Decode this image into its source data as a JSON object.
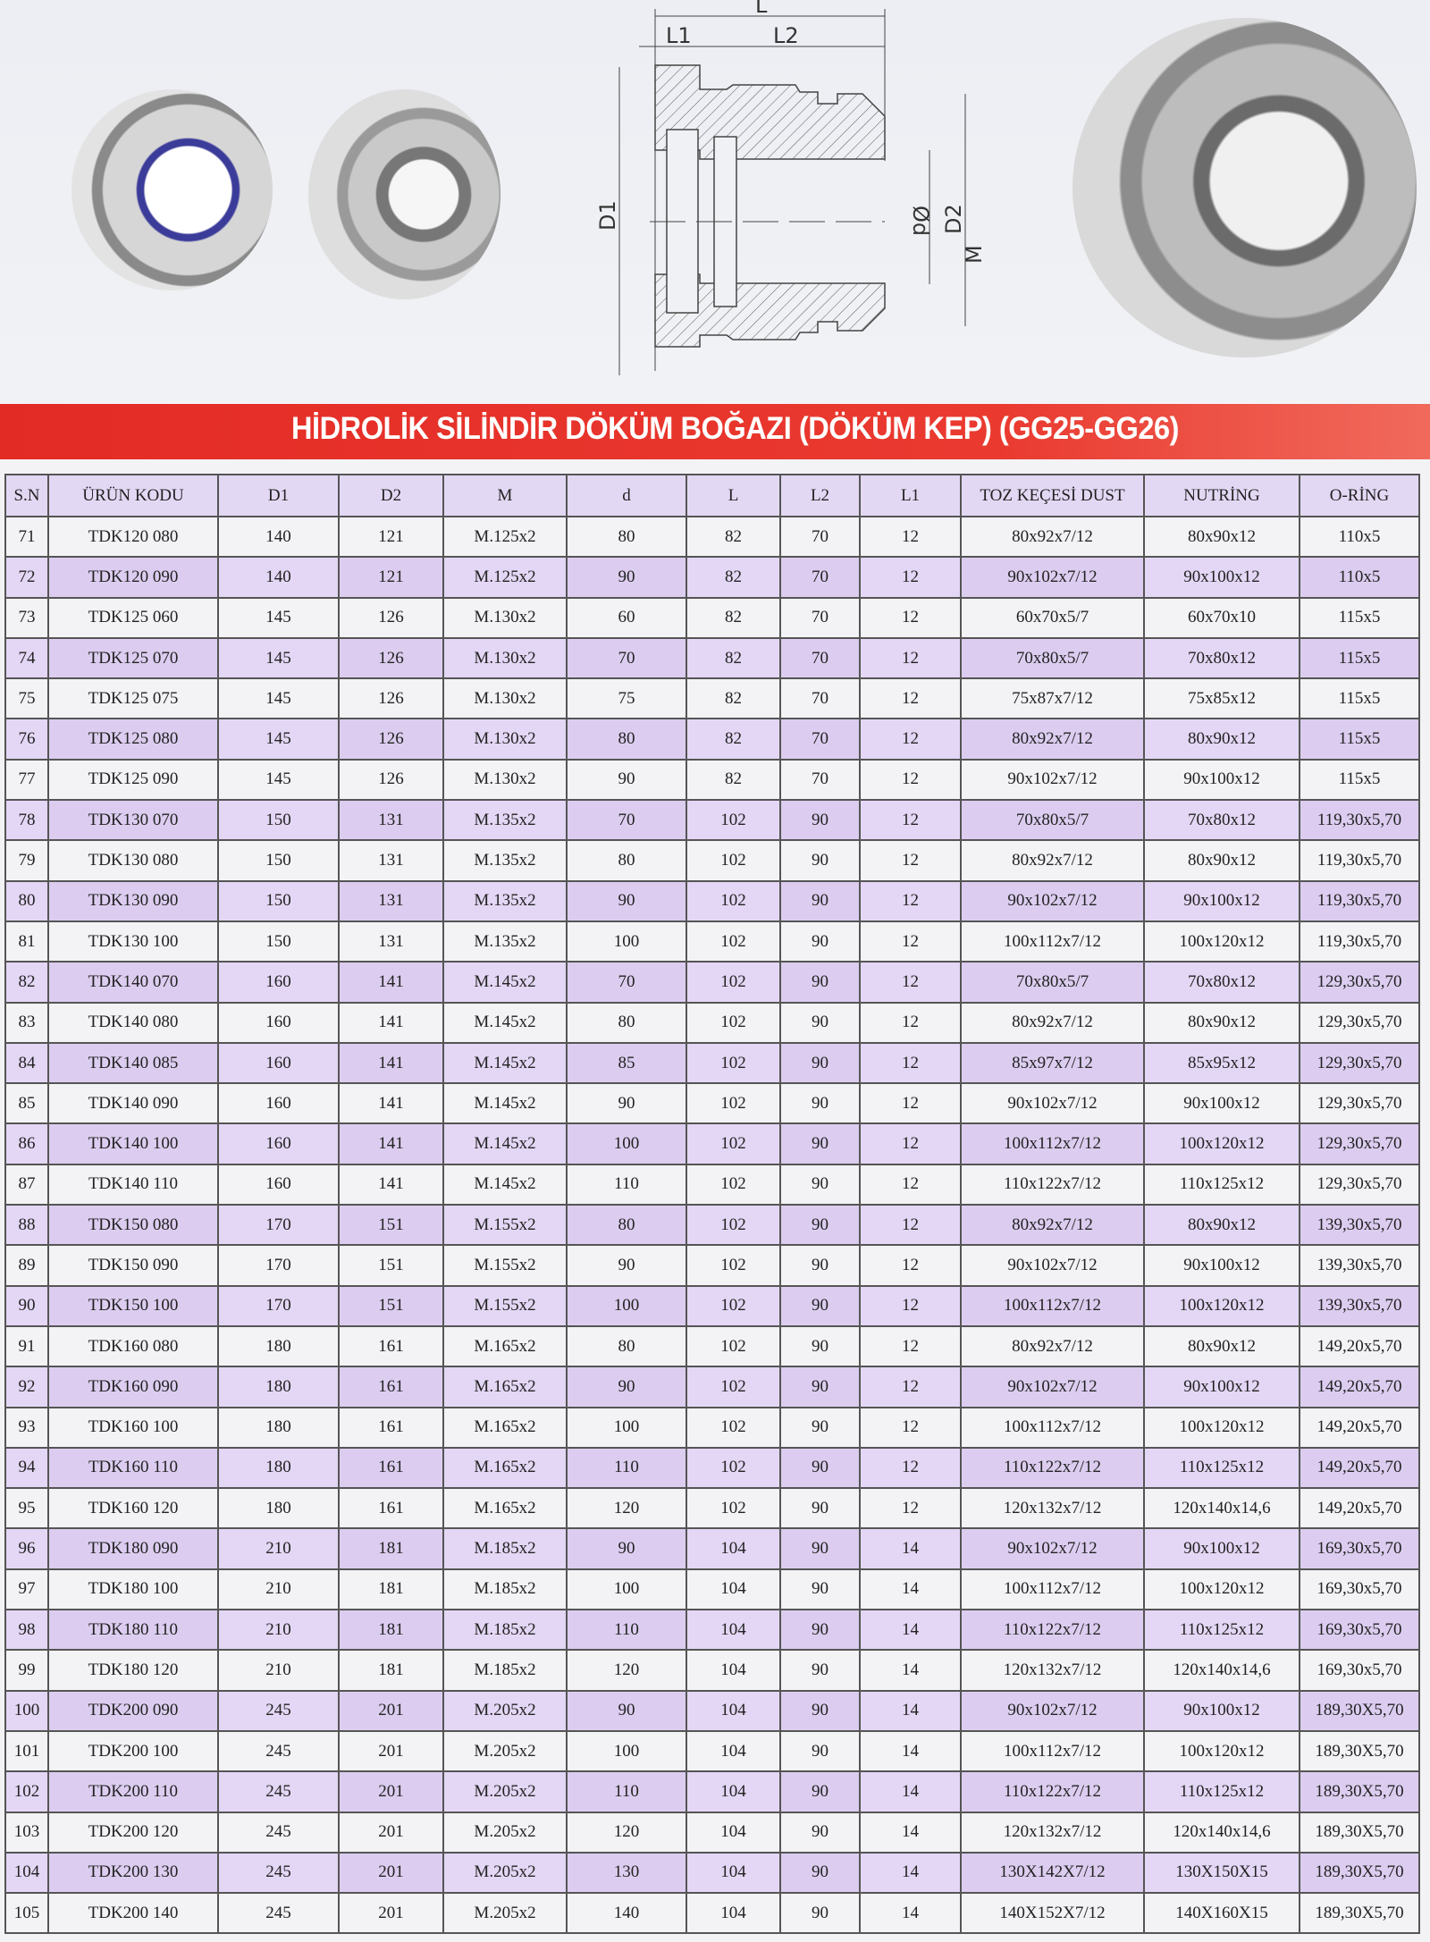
{
  "title": "HİDROLİK SİLİNDİR DÖKÜM BOĞAZI (DÖKÜM KEP) (GG25-GG26)",
  "drawing_labels": {
    "L": "L",
    "L1": "L1",
    "L2": "L2",
    "D1": "D1",
    "Od": "Ød",
    "D2": "D2",
    "M": "M"
  },
  "colors": {
    "banner": "#e32b25",
    "row_alt": "#e4d7f5"
  },
  "table": {
    "headers": [
      "S.N",
      "ÜRÜN KODU",
      "D1",
      "D2",
      "M",
      "d",
      "L",
      "L2",
      "L1",
      "TOZ KEÇESİ DUST",
      "NUTRİNG",
      "O-RİNG"
    ],
    "rows": [
      [
        "71",
        "TDK120 080",
        "140",
        "121",
        "M.125x2",
        "80",
        "82",
        "70",
        "12",
        "80x92x7/12",
        "80x90x12",
        "110x5"
      ],
      [
        "72",
        "TDK120 090",
        "140",
        "121",
        "M.125x2",
        "90",
        "82",
        "70",
        "12",
        "90x102x7/12",
        "90x100x12",
        "110x5"
      ],
      [
        "73",
        "TDK125 060",
        "145",
        "126",
        "M.130x2",
        "60",
        "82",
        "70",
        "12",
        "60x70x5/7",
        "60x70x10",
        "115x5"
      ],
      [
        "74",
        "TDK125 070",
        "145",
        "126",
        "M.130x2",
        "70",
        "82",
        "70",
        "12",
        "70x80x5/7",
        "70x80x12",
        "115x5"
      ],
      [
        "75",
        "TDK125 075",
        "145",
        "126",
        "M.130x2",
        "75",
        "82",
        "70",
        "12",
        "75x87x7/12",
        "75x85x12",
        "115x5"
      ],
      [
        "76",
        "TDK125 080",
        "145",
        "126",
        "M.130x2",
        "80",
        "82",
        "70",
        "12",
        "80x92x7/12",
        "80x90x12",
        "115x5"
      ],
      [
        "77",
        "TDK125 090",
        "145",
        "126",
        "M.130x2",
        "90",
        "82",
        "70",
        "12",
        "90x102x7/12",
        "90x100x12",
        "115x5"
      ],
      [
        "78",
        "TDK130 070",
        "150",
        "131",
        "M.135x2",
        "70",
        "102",
        "90",
        "12",
        "70x80x5/7",
        "70x80x12",
        "119,30x5,70"
      ],
      [
        "79",
        "TDK130 080",
        "150",
        "131",
        "M.135x2",
        "80",
        "102",
        "90",
        "12",
        "80x92x7/12",
        "80x90x12",
        "119,30x5,70"
      ],
      [
        "80",
        "TDK130 090",
        "150",
        "131",
        "M.135x2",
        "90",
        "102",
        "90",
        "12",
        "90x102x7/12",
        "90x100x12",
        "119,30x5,70"
      ],
      [
        "81",
        "TDK130 100",
        "150",
        "131",
        "M.135x2",
        "100",
        "102",
        "90",
        "12",
        "100x112x7/12",
        "100x120x12",
        "119,30x5,70"
      ],
      [
        "82",
        "TDK140 070",
        "160",
        "141",
        "M.145x2",
        "70",
        "102",
        "90",
        "12",
        "70x80x5/7",
        "70x80x12",
        "129,30x5,70"
      ],
      [
        "83",
        "TDK140 080",
        "160",
        "141",
        "M.145x2",
        "80",
        "102",
        "90",
        "12",
        "80x92x7/12",
        "80x90x12",
        "129,30x5,70"
      ],
      [
        "84",
        "TDK140 085",
        "160",
        "141",
        "M.145x2",
        "85",
        "102",
        "90",
        "12",
        "85x97x7/12",
        "85x95x12",
        "129,30x5,70"
      ],
      [
        "85",
        "TDK140 090",
        "160",
        "141",
        "M.145x2",
        "90",
        "102",
        "90",
        "12",
        "90x102x7/12",
        "90x100x12",
        "129,30x5,70"
      ],
      [
        "86",
        "TDK140 100",
        "160",
        "141",
        "M.145x2",
        "100",
        "102",
        "90",
        "12",
        "100x112x7/12",
        "100x120x12",
        "129,30x5,70"
      ],
      [
        "87",
        "TDK140 110",
        "160",
        "141",
        "M.145x2",
        "110",
        "102",
        "90",
        "12",
        "110x122x7/12",
        "110x125x12",
        "129,30x5,70"
      ],
      [
        "88",
        "TDK150 080",
        "170",
        "151",
        "M.155x2",
        "80",
        "102",
        "90",
        "12",
        "80x92x7/12",
        "80x90x12",
        "139,30x5,70"
      ],
      [
        "89",
        "TDK150 090",
        "170",
        "151",
        "M.155x2",
        "90",
        "102",
        "90",
        "12",
        "90x102x7/12",
        "90x100x12",
        "139,30x5,70"
      ],
      [
        "90",
        "TDK150 100",
        "170",
        "151",
        "M.155x2",
        "100",
        "102",
        "90",
        "12",
        "100x112x7/12",
        "100x120x12",
        "139,30x5,70"
      ],
      [
        "91",
        "TDK160 080",
        "180",
        "161",
        "M.165x2",
        "80",
        "102",
        "90",
        "12",
        "80x92x7/12",
        "80x90x12",
        "149,20x5,70"
      ],
      [
        "92",
        "TDK160 090",
        "180",
        "161",
        "M.165x2",
        "90",
        "102",
        "90",
        "12",
        "90x102x7/12",
        "90x100x12",
        "149,20x5,70"
      ],
      [
        "93",
        "TDK160 100",
        "180",
        "161",
        "M.165x2",
        "100",
        "102",
        "90",
        "12",
        "100x112x7/12",
        "100x120x12",
        "149,20x5,70"
      ],
      [
        "94",
        "TDK160 110",
        "180",
        "161",
        "M.165x2",
        "110",
        "102",
        "90",
        "12",
        "110x122x7/12",
        "110x125x12",
        "149,20x5,70"
      ],
      [
        "95",
        "TDK160 120",
        "180",
        "161",
        "M.165x2",
        "120",
        "102",
        "90",
        "12",
        "120x132x7/12",
        "120x140x14,6",
        "149,20x5,70"
      ],
      [
        "96",
        "TDK180 090",
        "210",
        "181",
        "M.185x2",
        "90",
        "104",
        "90",
        "14",
        "90x102x7/12",
        "90x100x12",
        "169,30x5,70"
      ],
      [
        "97",
        "TDK180 100",
        "210",
        "181",
        "M.185x2",
        "100",
        "104",
        "90",
        "14",
        "100x112x7/12",
        "100x120x12",
        "169,30x5,70"
      ],
      [
        "98",
        "TDK180 110",
        "210",
        "181",
        "M.185x2",
        "110",
        "104",
        "90",
        "14",
        "110x122x7/12",
        "110x125x12",
        "169,30x5,70"
      ],
      [
        "99",
        "TDK180 120",
        "210",
        "181",
        "M.185x2",
        "120",
        "104",
        "90",
        "14",
        "120x132x7/12",
        "120x140x14,6",
        "169,30x5,70"
      ],
      [
        "100",
        "TDK200 090",
        "245",
        "201",
        "M.205x2",
        "90",
        "104",
        "90",
        "14",
        "90x102x7/12",
        "90x100x12",
        "189,30X5,70"
      ],
      [
        "101",
        "TDK200 100",
        "245",
        "201",
        "M.205x2",
        "100",
        "104",
        "90",
        "14",
        "100x112x7/12",
        "100x120x12",
        "189,30X5,70"
      ],
      [
        "102",
        "TDK200 110",
        "245",
        "201",
        "M.205x2",
        "110",
        "104",
        "90",
        "14",
        "110x122x7/12",
        "110x125x12",
        "189,30X5,70"
      ],
      [
        "103",
        "TDK200 120",
        "245",
        "201",
        "M.205x2",
        "120",
        "104",
        "90",
        "14",
        "120x132x7/12",
        "120x140x14,6",
        "189,30X5,70"
      ],
      [
        "104",
        "TDK200 130",
        "245",
        "201",
        "M.205x2",
        "130",
        "104",
        "90",
        "14",
        "130X142X7/12",
        "130X150X15",
        "189,30X5,70"
      ],
      [
        "105",
        "TDK200 140",
        "245",
        "201",
        "M.205x2",
        "140",
        "104",
        "90",
        "14",
        "140X152X7/12",
        "140X160X15",
        "189,30X5,70"
      ]
    ]
  }
}
